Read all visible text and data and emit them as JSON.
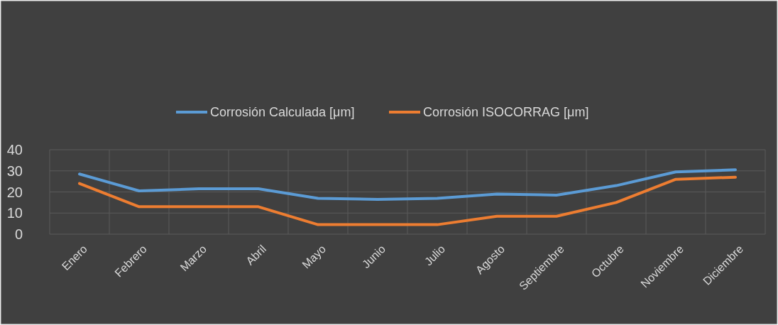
{
  "chart_data": {
    "type": "line",
    "categories": [
      "Enero",
      "Febrero",
      "Marzo",
      "Abril",
      "Mayo",
      "Junio",
      "Julio",
      "Agosto",
      "Septiembre",
      "Octubre",
      "Noviembre",
      "Diciembre"
    ],
    "series": [
      {
        "name": "Corrosión Calculada [μm]",
        "color": "#5b9bd5",
        "values": [
          28.5,
          20.5,
          21.5,
          21.5,
          17,
          16.5,
          17,
          19,
          18.5,
          23,
          29.5,
          30.5
        ]
      },
      {
        "name": "Corrosión ISOCORRAG [μm]",
        "color": "#ed7d31",
        "values": [
          24,
          13,
          13,
          13,
          4.5,
          4.5,
          4.5,
          8.5,
          8.5,
          15,
          26,
          27
        ]
      }
    ],
    "ylim": [
      0,
      40
    ],
    "yticks": [
      0,
      10,
      20,
      30,
      40
    ],
    "grid": true,
    "legend": "top",
    "marker": "none",
    "line_style": "solid"
  }
}
